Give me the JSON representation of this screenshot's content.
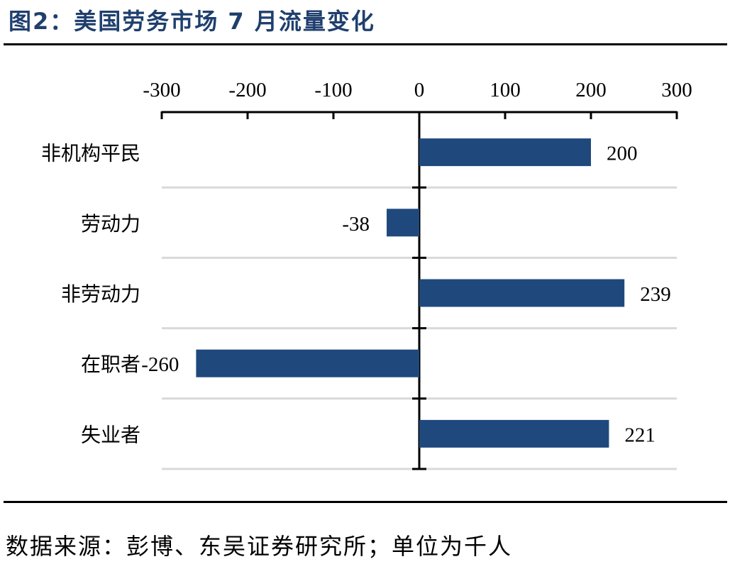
{
  "title": "图2：美国劳务市场 7 月流量变化",
  "source": "数据来源：彭博、东吴证券研究所；单位为千人",
  "colors": {
    "bar": "#1F497D",
    "title": "#1F3F6E",
    "grid": "#D9D9D9",
    "axis": "#000000"
  },
  "chart_data": {
    "type": "bar",
    "orientation": "horizontal",
    "title": "",
    "xlabel": "",
    "ylabel": "",
    "xlim": [
      -300,
      300
    ],
    "x_ticks": [
      -300,
      -200,
      -100,
      0,
      100,
      200,
      300
    ],
    "x_axis_position": "top",
    "grid": true,
    "categories": [
      "非机构平民",
      "劳动力",
      "非劳动力",
      "在职者",
      "失业者"
    ],
    "values": [
      200,
      -38,
      239,
      -260,
      221
    ],
    "data_labels": [
      "200",
      "-38",
      "239",
      "-260",
      "221"
    ]
  }
}
